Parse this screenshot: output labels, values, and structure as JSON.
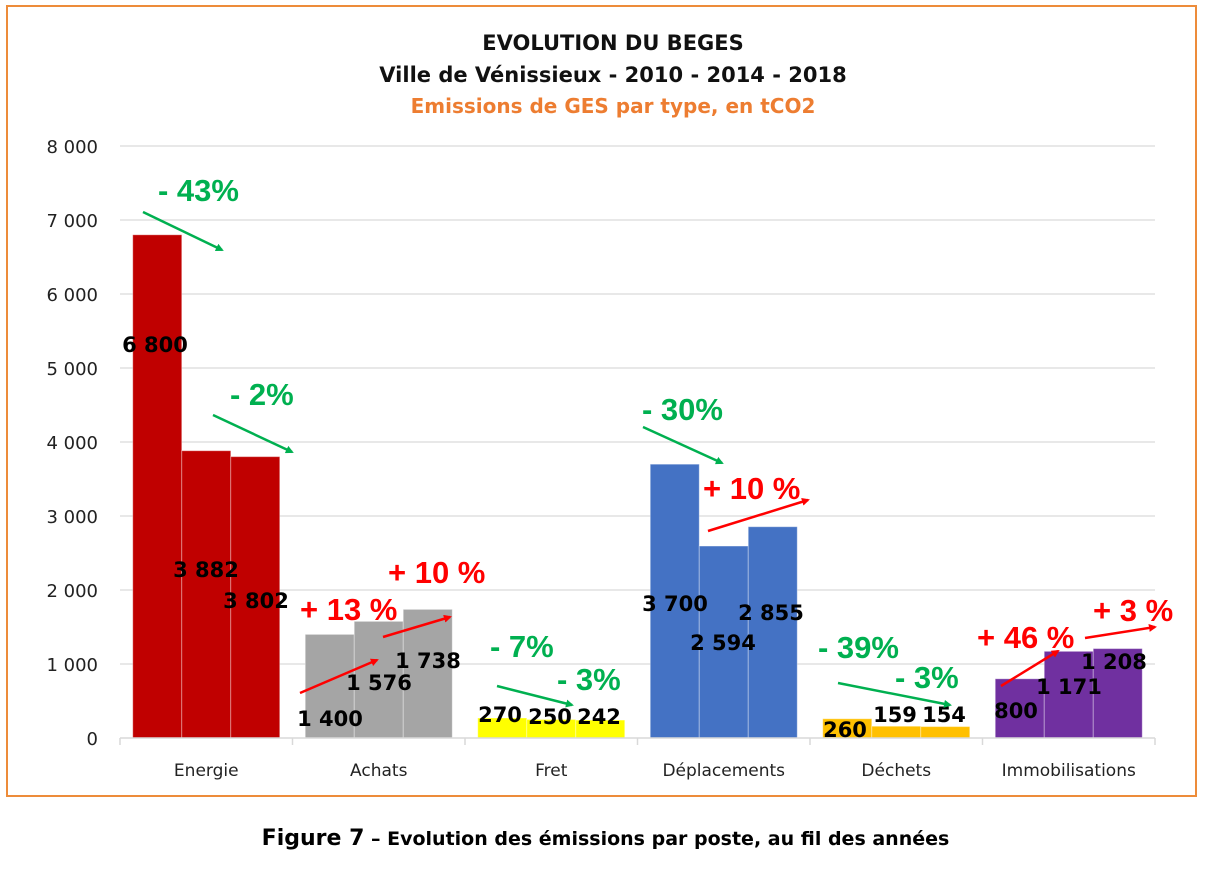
{
  "caption": {
    "figure_label": "Figure 7",
    "text": " – Evolution des émissions par poste, au fil des années"
  },
  "chart_data": {
    "type": "bar",
    "title": "EVOLUTION DU BEGES",
    "subtitle": "Ville de Vénissieux - 2010 - 2014 - 2018",
    "subtitle2": "Emissions de GES par type, en tCO2",
    "xlabel": "",
    "ylabel": "",
    "ylim": [
      0,
      8000
    ],
    "yticks": [
      0,
      1000,
      2000,
      3000,
      4000,
      5000,
      6000,
      7000,
      8000
    ],
    "ytick_labels": [
      "0",
      "1 000",
      "2 000",
      "3 000",
      "4 000",
      "5 000",
      "6 000",
      "7 000",
      "8 000"
    ],
    "grid": true,
    "legend": "none",
    "years": [
      "2010",
      "2014",
      "2018"
    ],
    "categories": [
      "Energie",
      "Achats",
      "Fret",
      "Déplacements",
      "Déchets",
      "Immobilisations"
    ],
    "colors": [
      "#c00000",
      "#a5a5a5",
      "#ffff00",
      "#4472c4",
      "#ffc000",
      "#7030a0"
    ],
    "series": [
      {
        "name": "2010",
        "values": [
          6800,
          1400,
          270,
          3700,
          260,
          800
        ]
      },
      {
        "name": "2014",
        "values": [
          3882,
          1576,
          250,
          2594,
          159,
          1171
        ]
      },
      {
        "name": "2018",
        "values": [
          3802,
          1738,
          242,
          2855,
          154,
          1208
        ]
      }
    ],
    "value_labels": [
      [
        "6 800",
        "3 882",
        "3 802"
      ],
      [
        "1 400",
        "1 576",
        "1 738"
      ],
      [
        "270",
        "250",
        "242"
      ],
      [
        "3 700",
        "2 594",
        "2 855"
      ],
      [
        "260",
        "159",
        "154"
      ],
      [
        "800",
        "1 171",
        "1 208"
      ]
    ],
    "annotations": [
      {
        "category": "Energie",
        "period": "2010-2014",
        "text": "- 43%",
        "direction": "down",
        "color": "#00b050"
      },
      {
        "category": "Energie",
        "period": "2014-2018",
        "text": "- 2%",
        "direction": "down",
        "color": "#00b050"
      },
      {
        "category": "Achats",
        "period": "2010-2014",
        "text": "+ 13 %",
        "direction": "up",
        "color": "#ff0000"
      },
      {
        "category": "Achats",
        "period": "2014-2018",
        "text": "+ 10 %",
        "direction": "up",
        "color": "#ff0000"
      },
      {
        "category": "Fret",
        "period": "2010-2014",
        "text": "- 7%",
        "direction": "down",
        "color": "#00b050"
      },
      {
        "category": "Fret",
        "period": "2014-2018",
        "text": "- 3%",
        "direction": "down",
        "color": "#00b050"
      },
      {
        "category": "Déplacements",
        "period": "2010-2014",
        "text": "- 30%",
        "direction": "down",
        "color": "#00b050"
      },
      {
        "category": "Déplacements",
        "period": "2014-2018",
        "text": "+ 10 %",
        "direction": "up",
        "color": "#ff0000"
      },
      {
        "category": "Déchets",
        "period": "2010-2014",
        "text": "- 39%",
        "direction": "down",
        "color": "#00b050"
      },
      {
        "category": "Déchets",
        "period": "2014-2018",
        "text": "- 3%",
        "direction": "down",
        "color": "#00b050"
      },
      {
        "category": "Immobilisations",
        "period": "2010-2014",
        "text": "+ 46 %",
        "direction": "up",
        "color": "#ff0000"
      },
      {
        "category": "Immobilisations",
        "period": "2014-2018",
        "text": "+ 3 %",
        "direction": "up",
        "color": "#ff0000"
      }
    ]
  }
}
